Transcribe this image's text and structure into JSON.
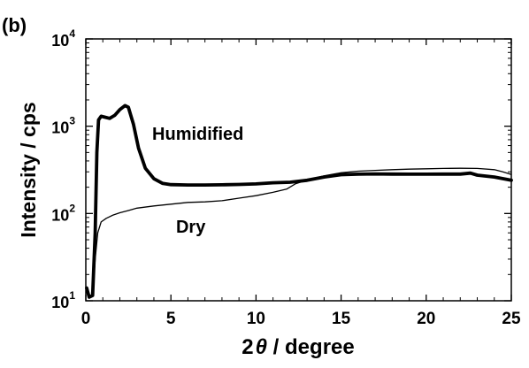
{
  "panel_label": "(b)",
  "chart_data": {
    "type": "line",
    "xlabel_main": "2",
    "xlabel_theta": "θ",
    "xlabel_rest": " / degree",
    "ylabel": "Intensity / cps",
    "xlim": [
      0,
      25
    ],
    "ylim": [
      10,
      10000
    ],
    "yscale": "log",
    "x_ticks": [
      0,
      5,
      10,
      15,
      20,
      25
    ],
    "x_tick_labels": [
      "0",
      "5",
      "10",
      "15",
      "20",
      "25"
    ],
    "y_ticks": [
      {
        "value": 10,
        "base": "10",
        "exp": "1"
      },
      {
        "value": 100,
        "base": "10",
        "exp": "2"
      },
      {
        "value": 1000,
        "base": "10",
        "exp": "3"
      },
      {
        "value": 10000,
        "base": "10",
        "exp": "4"
      }
    ],
    "grid": false,
    "series": [
      {
        "name": "Humidified",
        "label_anchor": {
          "x": 3.9,
          "y": 700
        },
        "line_width": 3.8,
        "color": "#000000",
        "points": [
          [
            0.05,
            14
          ],
          [
            0.2,
            11
          ],
          [
            0.4,
            11.5
          ],
          [
            0.55,
            60
          ],
          [
            0.65,
            500
          ],
          [
            0.75,
            1180
          ],
          [
            0.9,
            1300
          ],
          [
            1.1,
            1270
          ],
          [
            1.4,
            1230
          ],
          [
            1.7,
            1330
          ],
          [
            2.0,
            1550
          ],
          [
            2.3,
            1720
          ],
          [
            2.5,
            1650
          ],
          [
            2.8,
            1050
          ],
          [
            3.1,
            560
          ],
          [
            3.5,
            330
          ],
          [
            4.0,
            250
          ],
          [
            4.5,
            222
          ],
          [
            5.0,
            214
          ],
          [
            6.0,
            212
          ],
          [
            7.0,
            212
          ],
          [
            8.0,
            213
          ],
          [
            9.0,
            215
          ],
          [
            10.0,
            218
          ],
          [
            11.0,
            225
          ],
          [
            12.0,
            228
          ],
          [
            13.0,
            240
          ],
          [
            14.0,
            262
          ],
          [
            15.0,
            278
          ],
          [
            16.0,
            282
          ],
          [
            17.0,
            284
          ],
          [
            18.0,
            283
          ],
          [
            19.0,
            282
          ],
          [
            20.0,
            282
          ],
          [
            21.0,
            283
          ],
          [
            22.0,
            283
          ],
          [
            22.6,
            290
          ],
          [
            23.0,
            275
          ],
          [
            24.0,
            262
          ],
          [
            25.0,
            240
          ]
        ]
      },
      {
        "name": "Dry",
        "label_anchor": {
          "x": 5.3,
          "y": 60
        },
        "line_width": 1.3,
        "color": "#000000",
        "points": [
          [
            0.05,
            13
          ],
          [
            0.2,
            11.5
          ],
          [
            0.4,
            11.5
          ],
          [
            0.55,
            30
          ],
          [
            0.7,
            60
          ],
          [
            0.9,
            80
          ],
          [
            1.2,
            88
          ],
          [
            1.6,
            96
          ],
          [
            2.0,
            102
          ],
          [
            2.5,
            108
          ],
          [
            3.0,
            115
          ],
          [
            4.0,
            122
          ],
          [
            5.0,
            128
          ],
          [
            6.0,
            134
          ],
          [
            7.0,
            136
          ],
          [
            8.0,
            140
          ],
          [
            9.0,
            150
          ],
          [
            10.0,
            160
          ],
          [
            11.0,
            175
          ],
          [
            11.8,
            190
          ],
          [
            12.3,
            218
          ],
          [
            13.0,
            242
          ],
          [
            14.0,
            270
          ],
          [
            15.0,
            293
          ],
          [
            16.0,
            305
          ],
          [
            17.0,
            312
          ],
          [
            18.0,
            318
          ],
          [
            19.0,
            322
          ],
          [
            20.0,
            325
          ],
          [
            21.0,
            328
          ],
          [
            22.0,
            330
          ],
          [
            23.0,
            328
          ],
          [
            24.0,
            318
          ],
          [
            24.5,
            300
          ],
          [
            25.0,
            280
          ]
        ]
      }
    ]
  }
}
